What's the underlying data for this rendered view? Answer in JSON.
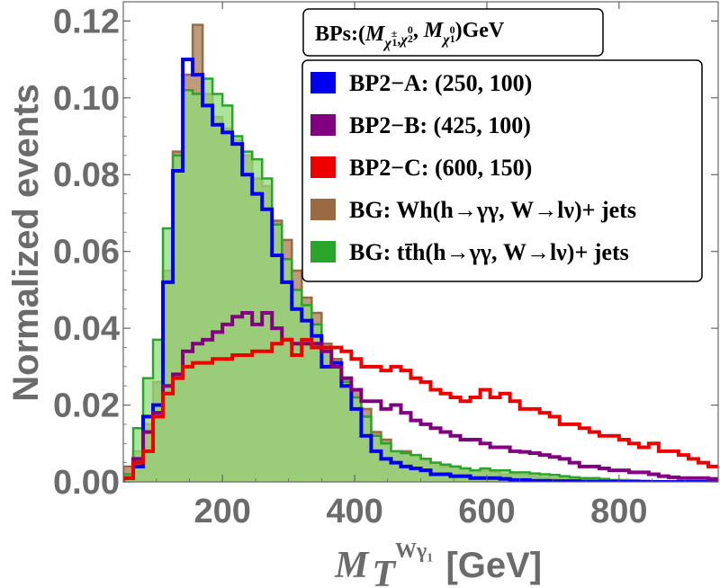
{
  "chart_data": {
    "type": "histogram",
    "xlabel": {
      "main": "M",
      "sub": "T",
      "sup": "Wγ₁",
      "unit": "[GeV]"
    },
    "ylabel": "Normalized events",
    "xlim": [
      50,
      950
    ],
    "ylim": [
      0,
      0.125
    ],
    "xticks": [
      200,
      400,
      600,
      800
    ],
    "yticks": [
      0.0,
      0.02,
      0.04,
      0.06,
      0.08,
      0.1,
      0.12
    ],
    "ytick_labels": [
      "0.00",
      "0.02",
      "0.04",
      "0.06",
      "0.08",
      "0.10",
      "0.12"
    ],
    "xtick_labels": [
      "200",
      "400",
      "600",
      "800"
    ],
    "bin_edges_start": 50,
    "bin_width": 15,
    "legend_title": "BPs:(M_χ1±,χ2⁰, M_χ1⁰)GeV",
    "series": [
      {
        "name": "BG: Wh",
        "label": "BG:  Wh(h→γγ, W→lν)+ jets",
        "color": "#9a6b43",
        "fill": "#a77a52",
        "filled": true,
        "values": [
          0.004,
          0.008,
          0.015,
          0.026,
          0.055,
          0.086,
          0.106,
          0.119,
          0.101,
          0.095,
          0.092,
          0.089,
          0.085,
          0.079,
          0.077,
          0.068,
          0.063,
          0.055,
          0.048,
          0.044,
          0.036,
          0.032,
          0.027,
          0.024,
          0.019,
          0.013,
          0.011,
          0.008,
          0.008,
          0.007,
          0.006,
          0.005,
          0.004,
          0.004,
          0.0035,
          0.003,
          0.003,
          0.0025,
          0.002,
          0.002,
          0.0018,
          0.0015,
          0.0012,
          0.001,
          0.001,
          0.0008,
          0.0005,
          0.0005,
          0.0003,
          0.0003,
          0.0002,
          0.0001,
          0.0001,
          0.0001,
          0.0,
          0.0,
          0.0,
          0.0,
          0.0,
          0.0
        ]
      },
      {
        "name": "BG: tth",
        "label": "BG: tt̄h(h→γγ, W→lν)+ jets",
        "color": "#2aa52a",
        "fill": "#8fdc7a",
        "filled": true,
        "values": [
          0.002,
          0.014,
          0.027,
          0.037,
          0.066,
          0.085,
          0.102,
          0.101,
          0.105,
          0.101,
          0.098,
          0.09,
          0.086,
          0.084,
          0.079,
          0.067,
          0.058,
          0.05,
          0.046,
          0.041,
          0.035,
          0.03,
          0.026,
          0.022,
          0.017,
          0.012,
          0.01,
          0.008,
          0.0075,
          0.007,
          0.006,
          0.005,
          0.0045,
          0.004,
          0.0035,
          0.003,
          0.0035,
          0.003,
          0.003,
          0.0025,
          0.0025,
          0.0022,
          0.002,
          0.0018,
          0.0015,
          0.0012,
          0.001,
          0.001,
          0.0008,
          0.0005,
          0.0005,
          0.0004,
          0.0003,
          0.0002,
          0.0001,
          0.0001,
          0.0001,
          0.0001,
          0.0001,
          0.0001
        ]
      },
      {
        "name": "BP2-A",
        "label": "BP2−A: (250, 100)",
        "color": "#0000ee",
        "fill": "none",
        "filled": false,
        "values": [
          0.001,
          0.004,
          0.017,
          0.02,
          0.052,
          0.081,
          0.11,
          0.106,
          0.098,
          0.093,
          0.091,
          0.088,
          0.08,
          0.075,
          0.071,
          0.059,
          0.052,
          0.045,
          0.042,
          0.038,
          0.03,
          0.031,
          0.025,
          0.019,
          0.012,
          0.008,
          0.006,
          0.005,
          0.004,
          0.0035,
          0.003,
          0.002,
          0.002,
          0.0015,
          0.0015,
          0.001,
          0.001,
          0.001,
          0.0008,
          0.0005,
          0.0005,
          0.0003,
          0.0003,
          0.0002,
          0.0002,
          0.0002,
          0.0001,
          0.0001,
          0.0001,
          0.0001,
          0.0,
          0.0,
          0.0,
          0.0,
          0.0,
          0.0,
          0.0,
          0.0,
          0.0,
          0.0
        ]
      },
      {
        "name": "BP2-B",
        "label": "BP2−B: (425, 100)",
        "color": "#800080",
        "fill": "none",
        "filled": false,
        "values": [
          0.001,
          0.006,
          0.013,
          0.018,
          0.025,
          0.028,
          0.034,
          0.036,
          0.037,
          0.039,
          0.041,
          0.043,
          0.044,
          0.041,
          0.044,
          0.04,
          0.037,
          0.036,
          0.036,
          0.036,
          0.034,
          0.03,
          0.027,
          0.024,
          0.021,
          0.021,
          0.019,
          0.02,
          0.018,
          0.016,
          0.015,
          0.014,
          0.013,
          0.012,
          0.011,
          0.011,
          0.01,
          0.009,
          0.009,
          0.008,
          0.0078,
          0.0075,
          0.007,
          0.0065,
          0.006,
          0.005,
          0.004,
          0.004,
          0.0035,
          0.003,
          0.003,
          0.0025,
          0.0025,
          0.002,
          0.0015,
          0.0012,
          0.001,
          0.001,
          0.001,
          0.0008
        ]
      },
      {
        "name": "BP2-C",
        "label": "BP2−C: (600, 150)",
        "color": "#ee0000",
        "fill": "none",
        "filled": false,
        "values": [
          0.001,
          0.005,
          0.008,
          0.017,
          0.023,
          0.027,
          0.03,
          0.031,
          0.031,
          0.032,
          0.032,
          0.033,
          0.033,
          0.034,
          0.034,
          0.036,
          0.037,
          0.033,
          0.037,
          0.035,
          0.035,
          0.035,
          0.034,
          0.032,
          0.03,
          0.03,
          0.029,
          0.03,
          0.029,
          0.027,
          0.026,
          0.024,
          0.023,
          0.022,
          0.021,
          0.022,
          0.024,
          0.022,
          0.023,
          0.021,
          0.019,
          0.019,
          0.018,
          0.017,
          0.015,
          0.015,
          0.014,
          0.013,
          0.012,
          0.012,
          0.011,
          0.01,
          0.009,
          0.01,
          0.008,
          0.008,
          0.007,
          0.006,
          0.005,
          0.004
        ]
      }
    ],
    "legend": {
      "placement": "top-right",
      "entries": [
        {
          "text": "BP2−A: (250, 100)",
          "color": "#0000ee"
        },
        {
          "text": "BP2−B: (425, 100)",
          "color": "#800080"
        },
        {
          "text": "BP2−C: (600, 150)",
          "color": "#ee0000"
        },
        {
          "text": "BG:  Wh(h→γγ, W→lν)+ jets",
          "color": "#9a6b43"
        },
        {
          "text": "BG: tt̄h(h→γγ, W→lν)+ jets",
          "color": "#2aa52a"
        }
      ]
    }
  }
}
